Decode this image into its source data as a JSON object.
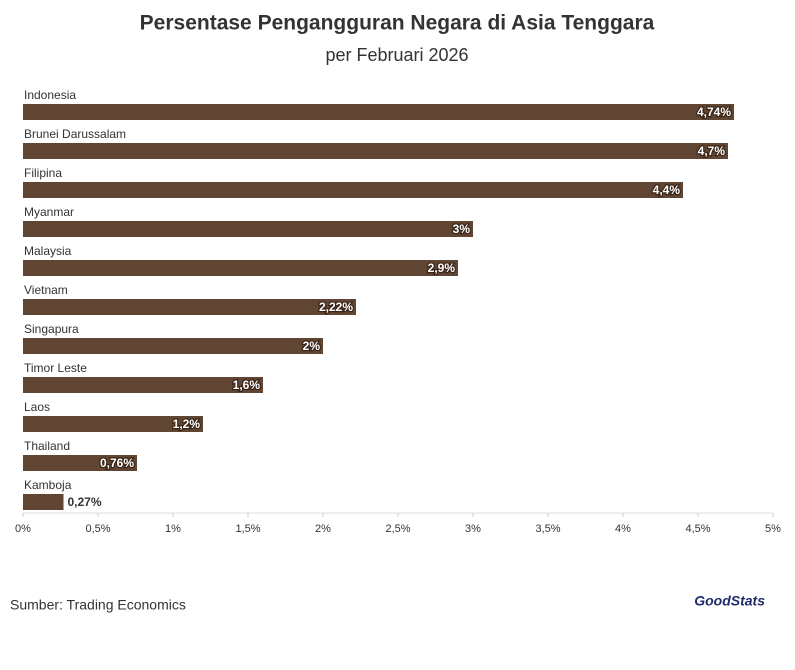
{
  "chart_data": {
    "type": "bar",
    "orientation": "horizontal",
    "title": "Persentase Pengangguran Negara di Asia Tenggara",
    "subtitle": "per Februari 2026",
    "categories": [
      "Indonesia",
      "Brunei Darussalam",
      "Filipina",
      "Myanmar",
      "Malaysia",
      "Vietnam",
      "Singapura",
      "Timor Leste",
      "Laos",
      "Thailand",
      "Kamboja"
    ],
    "values": [
      4.74,
      4.7,
      4.4,
      3,
      2.9,
      2.22,
      2,
      1.6,
      1.2,
      0.76,
      0.27
    ],
    "value_labels": [
      "4,74%",
      "4,7%",
      "4,4%",
      "3%",
      "2,9%",
      "2,22%",
      "2%",
      "1,6%",
      "1,2%",
      "0,76%",
      "0,27%"
    ],
    "color": "#614533",
    "xlim": [
      0,
      5
    ],
    "xticks": [
      {
        "value": 0,
        "label": "0%"
      },
      {
        "value": 0.5,
        "label": "0,5%"
      },
      {
        "value": 1,
        "label": "1%"
      },
      {
        "value": 1.5,
        "label": "1,5%"
      },
      {
        "value": 2,
        "label": "2%"
      },
      {
        "value": 2.5,
        "label": "2,5%"
      },
      {
        "value": 3,
        "label": "3%"
      },
      {
        "value": 3.5,
        "label": "3,5%"
      },
      {
        "value": 4,
        "label": "4%"
      },
      {
        "value": 4.5,
        "label": "4,5%"
      },
      {
        "value": 5,
        "label": "5%"
      }
    ],
    "source": "Sumber: Trading Economics",
    "logo": "GoodStats"
  }
}
